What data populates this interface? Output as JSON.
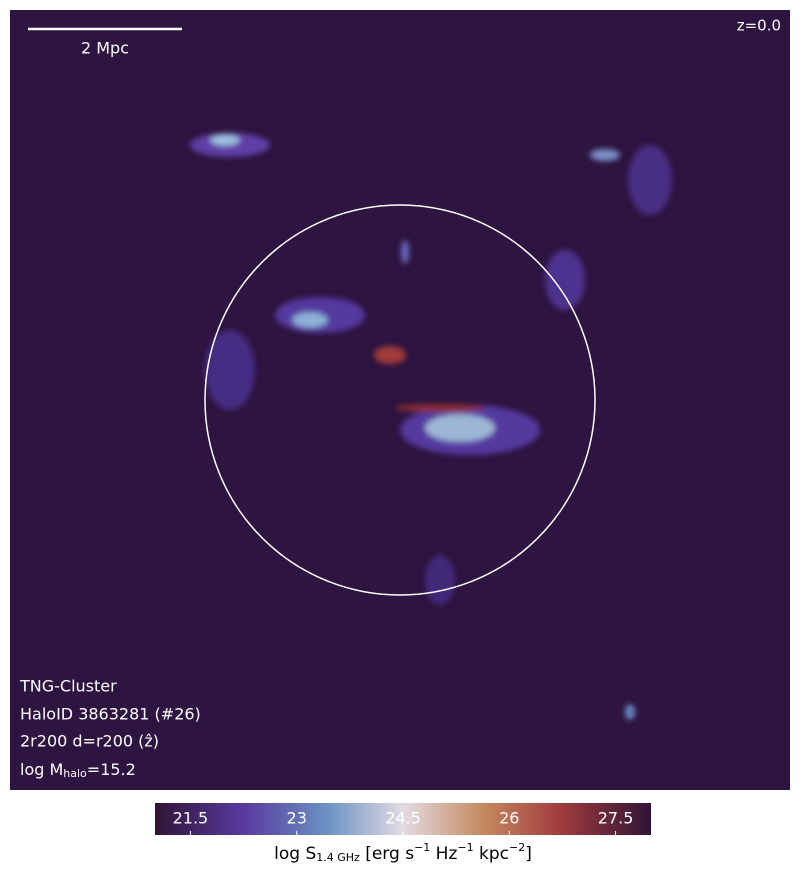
{
  "image": {
    "redshift": "z=0.0",
    "scale_bar": "2 Mpc",
    "info": [
      "TNG-Cluster",
      "HaloID 3863281 (#26)",
      "2r200 d=r200 (ẑ)"
    ],
    "mass_label": [
      "log M",
      "halo",
      "=15.2"
    ],
    "colorbar": {
      "lim": [
        21.0,
        28.0
      ],
      "ticks": [
        21.5,
        23.0,
        24.5,
        26.0,
        27.5
      ],
      "label": [
        "log S",
        "1.4 GHz",
        " [erg s",
        "−1",
        " Hz",
        "−1",
        " kpc",
        "−2",
        "]"
      ]
    }
  }
}
